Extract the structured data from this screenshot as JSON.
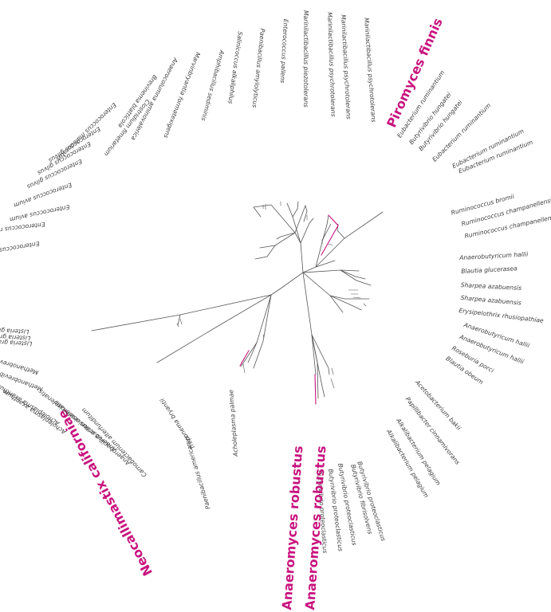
{
  "tree": {
    "line_color": "#555555",
    "highlight_color": "#c8147e"
  },
  "labels": [
    {
      "text": "Piromyces finnis",
      "highlight": true
    },
    {
      "text": "Eubacterium ruminantium"
    },
    {
      "text": "Butyrivibrio hungatei"
    },
    {
      "text": "Butyrivibrio hungatei"
    },
    {
      "text": "Eubacterium ruminantium"
    },
    {
      "text": "Eubacterium ruminantium"
    },
    {
      "text": "Eubacterium ruminantium"
    },
    {
      "text": "Ruminococcus bromii"
    },
    {
      "text": "Ruminococcus champanellensis"
    },
    {
      "text": "Ruminococcus champanellensis"
    },
    {
      "text": "Anaerobutyricum hallii"
    },
    {
      "text": "Blautia glucerasea"
    },
    {
      "text": "Sharpea azabuensis"
    },
    {
      "text": "Sharpea azabuensis"
    },
    {
      "text": "Erysipelothrix rhusiopathiae"
    },
    {
      "text": "Anaerobutyricum hallii"
    },
    {
      "text": "Anaerobutyricum hallii"
    },
    {
      "text": "Roseburia porci"
    },
    {
      "text": "Blautia obeum"
    },
    {
      "text": "Acetobacterium bakii"
    },
    {
      "text": "Papillibacter cinnamivorans"
    },
    {
      "text": "Alkalibacterium pelagium"
    },
    {
      "text": "Alkalibacterium pelagium"
    },
    {
      "text": "Butyrivibrio proteoclasticus"
    },
    {
      "text": "Butyrivibrio fibrisolvens"
    },
    {
      "text": "Butyrivibrio proteoclasticus"
    },
    {
      "text": "Butyrivibrio proteoclasticus"
    },
    {
      "text": "Butyrivibrio proteoclasticus"
    },
    {
      "text": "Anaeromyces robustus",
      "highlight": true
    },
    {
      "text": "Anaeromyces robustus",
      "highlight": true
    },
    {
      "text": "Acholeplasma palmae"
    },
    {
      "text": "Paenibacillus americanus"
    },
    {
      "text": "Neocallimastix californiae",
      "highlight": true
    },
    {
      "text": "Treponema bryantii"
    },
    {
      "text": "Carnobacterium alterfunditum"
    },
    {
      "text": "Anaerobacillus arseniciselenatis"
    },
    {
      "text": "Anaerobacillus arseniciselenatis"
    },
    {
      "text": "Acholeplasma axanthum"
    },
    {
      "text": "Acholeplasma axanthum"
    },
    {
      "text": "Methanobrevibacter curvatus"
    },
    {
      "text": "Methanobrevibacter filiformis"
    },
    {
      "text": "Listeria grayi"
    },
    {
      "text": "Listeria grayi"
    },
    {
      "text": "Listeria grayi"
    },
    {
      "text": "Enterococcus hulanensis"
    },
    {
      "text": "Enterococcus raffinosus"
    },
    {
      "text": "Enterococcus avium"
    },
    {
      "text": "Enterococcus avium"
    },
    {
      "text": "Enterococcus gilvus"
    },
    {
      "text": "Enterococcus gilvus"
    },
    {
      "text": "Enterococcus gilvus"
    },
    {
      "text": "Enterococcus malodoratus"
    },
    {
      "text": "Clostridium fimetarium"
    },
    {
      "text": "Brevinema blattícola"
    },
    {
      "text": "Anaerocolumna aminovalerica"
    },
    {
      "text": "Marvinbryantia formatexigens"
    },
    {
      "text": "Amphibacillus sediminis"
    },
    {
      "text": "Salinicoccus alkaliphilus"
    },
    {
      "text": "Paenibacillus amylolyticus"
    },
    {
      "text": "Enterococcus pallens"
    },
    {
      "text": "Marinilactibacillus piezotolerans"
    },
    {
      "text": "Marinilactibacillus psychrotolerans"
    },
    {
      "text": "Marinilactibacillus psychrotolerans"
    },
    {
      "text": "Marinilactibacillus psychrotolerans"
    }
  ]
}
